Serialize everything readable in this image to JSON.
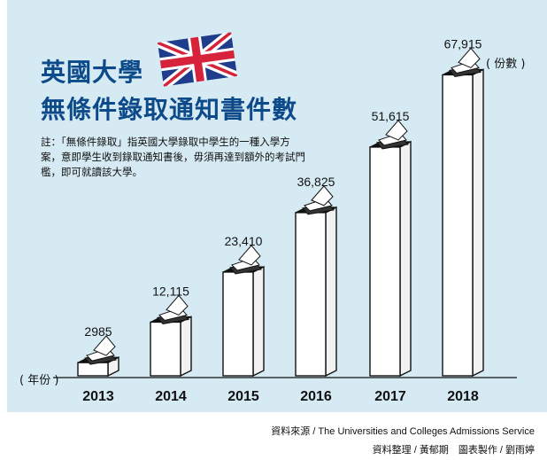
{
  "title": {
    "line1": "英國大學",
    "line2": "無條件錄取通知書件數"
  },
  "note": "註：「無條件錄取」指英國大學錄取中學生的一種入學方案，意即學生收到錄取通知書後，毋須再達到額外的考試門檻，即可就讀該大學。",
  "units": {
    "count": "( 份數 )",
    "year": "( 年份 )"
  },
  "source": {
    "line1": "資料來源 / The Universities and Colleges Admissions Service",
    "line2": "資料整理 / 黃郁期　圖表製作 / 劉雨婷"
  },
  "colors": {
    "background": "#d6eaf4",
    "title": "#0d4a8a",
    "bar": "#ffffff",
    "outline": "#111111"
  },
  "icon": "uk-flag",
  "chart_data": {
    "type": "bar",
    "categories": [
      "2013",
      "2014",
      "2015",
      "2016",
      "2017",
      "2018"
    ],
    "values": [
      2985,
      12115,
      23410,
      36825,
      51615,
      67915
    ],
    "value_labels": [
      "2985",
      "12,115",
      "23,410",
      "36,825",
      "51,615",
      "67,915"
    ],
    "ylim": [
      0,
      70000
    ],
    "grid": false
  }
}
